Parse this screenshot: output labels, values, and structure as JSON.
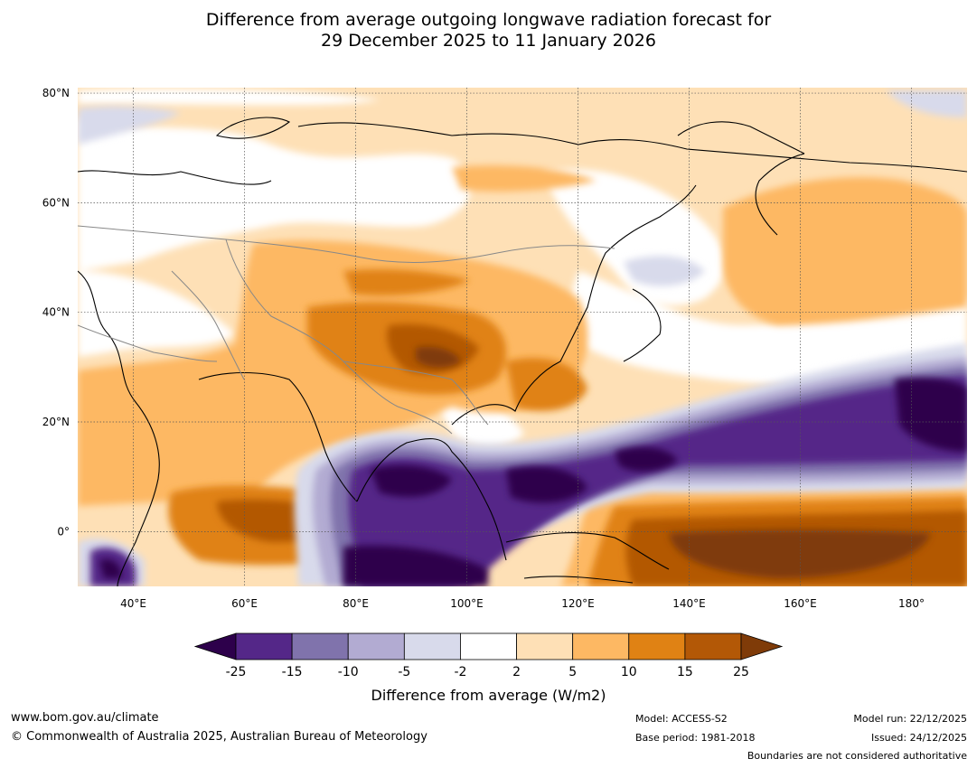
{
  "title": {
    "line1": "Difference from average outgoing longwave radiation forecast for",
    "line2": "29 December 2025 to 11 January 2026"
  },
  "map": {
    "lat_labels": [
      "80°N",
      "60°N",
      "40°N",
      "20°N",
      "0°"
    ],
    "lon_labels": [
      "40°E",
      "60°E",
      "80°E",
      "100°E",
      "120°E",
      "140°E",
      "160°E",
      "180°"
    ],
    "lat_values": [
      80,
      60,
      40,
      20,
      0
    ],
    "lon_values": [
      40,
      60,
      80,
      100,
      120,
      140,
      160,
      180
    ],
    "lon_range": [
      30,
      190
    ],
    "lat_range": [
      -10,
      81
    ]
  },
  "colorbar": {
    "label": "Difference from average (W/m2)",
    "ticks": [
      "-25",
      "-15",
      "-10",
      "-5",
      "-2",
      "2",
      "5",
      "10",
      "15",
      "25"
    ],
    "colors": [
      "#2d004b",
      "#542788",
      "#8073ac",
      "#b2abd2",
      "#d8daeb",
      "#ffffff",
      "#fee0b6",
      "#fdb863",
      "#e08214",
      "#b35806",
      "#7f3b08"
    ]
  },
  "footer": {
    "url": "www.bom.gov.au/climate",
    "copyright": "© Commonwealth of Australia 2025, Australian Bureau of Meteorology",
    "model": "Model: ACCESS-S2",
    "base_period": "Base period: 1981-2018",
    "model_run": "Model run: 22/12/2025",
    "issued": "Issued: 24/12/2025",
    "disclaimer": "Boundaries are not considered authoritative"
  }
}
